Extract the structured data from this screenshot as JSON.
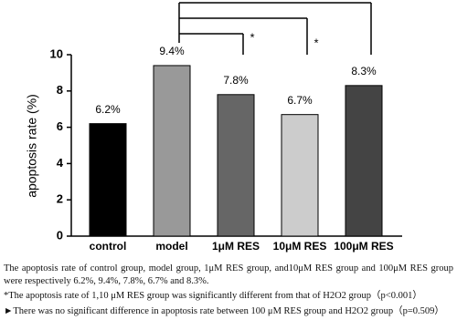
{
  "chart_data": {
    "type": "bar",
    "categories": [
      "control",
      "model",
      "1μM RES",
      "10μM RES",
      "100μM RES"
    ],
    "values": [
      6.2,
      9.4,
      7.8,
      6.7,
      8.3
    ],
    "value_labels": [
      "6.2%",
      "9.4%",
      "7.8%",
      "6.7%",
      "8.3%"
    ],
    "colors": [
      "#000000",
      "#999999",
      "#666666",
      "#cccccc",
      "#444444"
    ],
    "ylabel": "apoptosis rate (%)",
    "ylim": [
      0,
      10
    ],
    "yticks": [
      0,
      2,
      4,
      6,
      8,
      10
    ],
    "grid": false,
    "comparisons": [
      {
        "from": 1,
        "to": 2,
        "label": "*"
      },
      {
        "from": 1,
        "to": 3,
        "label": "*"
      },
      {
        "from": 1,
        "to": 4
      }
    ]
  },
  "caption": [
    "The apoptosis rate of control group, model group, 1μM RES group, and10μM RES group and 100μM RES group were respectively 6.2%, 9.4%, 7.8%, 6.7% and 8.3%.",
    "*The apoptosis rate of 1,10 μM RES group was significantly different from that of H2O2 group（p<0.001）",
    "►There was no significant difference in apoptosis rate between 100 μM RES group and H2O2 group（p=0.509）"
  ]
}
